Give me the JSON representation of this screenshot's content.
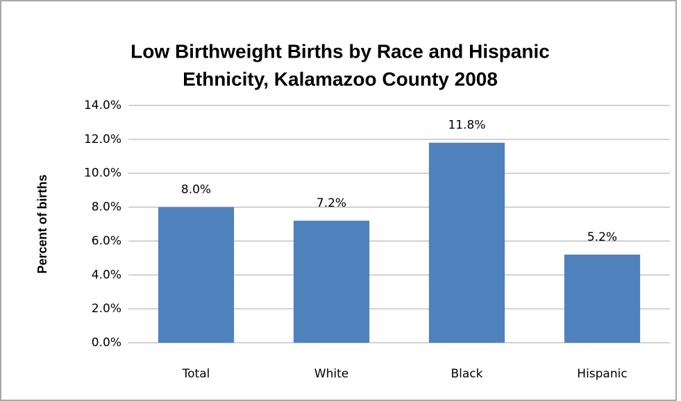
{
  "chart_data": {
    "type": "bar",
    "title": [
      "Low Birthweight Births by Race and Hispanic",
      "Ethnicity, Kalamazoo County 2008"
    ],
    "y_axis_label": "Percent of births",
    "categories": [
      "Total",
      "White",
      "Black",
      "Hispanic"
    ],
    "values": [
      8.0,
      7.2,
      11.8,
      5.2
    ],
    "value_labels": [
      "8.0%",
      "7.2%",
      "11.8%",
      "5.2%"
    ],
    "color": "#4f81bd",
    "ylim": [
      0,
      14
    ],
    "yticks": [
      {
        "value": 0,
        "label": "0.0%"
      },
      {
        "value": 2,
        "label": "2.0%"
      },
      {
        "value": 4,
        "label": "4.0%"
      },
      {
        "value": 6,
        "label": "6.0%"
      },
      {
        "value": 8,
        "label": "8.0%"
      },
      {
        "value": 10,
        "label": "10.0%"
      },
      {
        "value": 12,
        "label": "12.0%"
      },
      {
        "value": 14,
        "label": "14.0%"
      }
    ],
    "grid": true
  }
}
